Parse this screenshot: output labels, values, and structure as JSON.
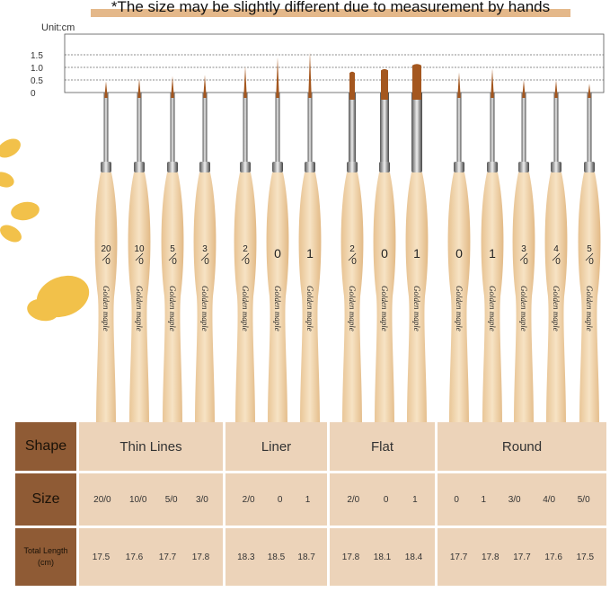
{
  "note": "*The size may be slightly different due to measurement by hands",
  "unit_label": "Unit:cm",
  "scale_ticks": [
    "0",
    "0.5",
    "1.0",
    "1.5"
  ],
  "handle_brand": "Golden maple",
  "brushes": [
    {
      "size_top": "20",
      "size_bottom": "0",
      "tip_cm": 0.45,
      "type": "round"
    },
    {
      "size_top": "10",
      "size_bottom": "0",
      "tip_cm": 0.55,
      "type": "round"
    },
    {
      "size_top": "5",
      "size_bottom": "0",
      "tip_cm": 0.65,
      "type": "round"
    },
    {
      "size_top": "3",
      "size_bottom": "0",
      "tip_cm": 0.7,
      "type": "round"
    },
    {
      "size_top": "2",
      "size_bottom": "0",
      "tip_cm": 1.05,
      "type": "round"
    },
    {
      "size_top": "0",
      "size_bottom": "",
      "tip_cm": 1.4,
      "type": "round"
    },
    {
      "size_top": "1",
      "size_bottom": "",
      "tip_cm": 1.6,
      "type": "round"
    },
    {
      "size_top": "2",
      "size_bottom": "0",
      "tip_cm": 0.85,
      "type": "flat"
    },
    {
      "size_top": "0",
      "size_bottom": "",
      "tip_cm": 0.95,
      "type": "flat"
    },
    {
      "size_top": "1",
      "size_bottom": "",
      "tip_cm": 1.15,
      "type": "flat"
    },
    {
      "size_top": "0",
      "size_bottom": "",
      "tip_cm": 0.8,
      "type": "round"
    },
    {
      "size_top": "1",
      "size_bottom": "",
      "tip_cm": 0.95,
      "type": "round"
    },
    {
      "size_top": "3",
      "size_bottom": "0",
      "tip_cm": 0.5,
      "type": "round"
    },
    {
      "size_top": "4",
      "size_bottom": "0",
      "tip_cm": 0.5,
      "type": "round"
    },
    {
      "size_top": "5",
      "size_bottom": "0",
      "tip_cm": 0.35,
      "type": "round"
    }
  ],
  "table": {
    "row_headers": [
      "Shape",
      "Size",
      "Total Length",
      "(cm)"
    ],
    "groups": [
      {
        "shape": "Thin Lines",
        "sizes": [
          "20/0",
          "10/0",
          "5/0",
          "3/0"
        ],
        "lengths": [
          "17.5",
          "17.6",
          "17.7",
          "17.8"
        ]
      },
      {
        "shape": "Liner",
        "sizes": [
          "2/0",
          "0",
          "1"
        ],
        "lengths": [
          "18.3",
          "18.5",
          "18.7"
        ]
      },
      {
        "shape": "Flat",
        "sizes": [
          "2/0",
          "0",
          "1"
        ],
        "lengths": [
          "17.8",
          "18.1",
          "18.4"
        ]
      },
      {
        "shape": "Round",
        "sizes": [
          "0",
          "1",
          "3/0",
          "4/0",
          "5/0"
        ],
        "lengths": [
          "17.7",
          "17.8",
          "17.7",
          "17.6",
          "17.5"
        ]
      }
    ]
  },
  "colors": {
    "header_brown": "#8f5b35",
    "cell_beige": "#ecd3b9",
    "note_highlight": "#e4b88a",
    "handle_wood": "#f0d3a8",
    "bristle": "#a4571f"
  }
}
